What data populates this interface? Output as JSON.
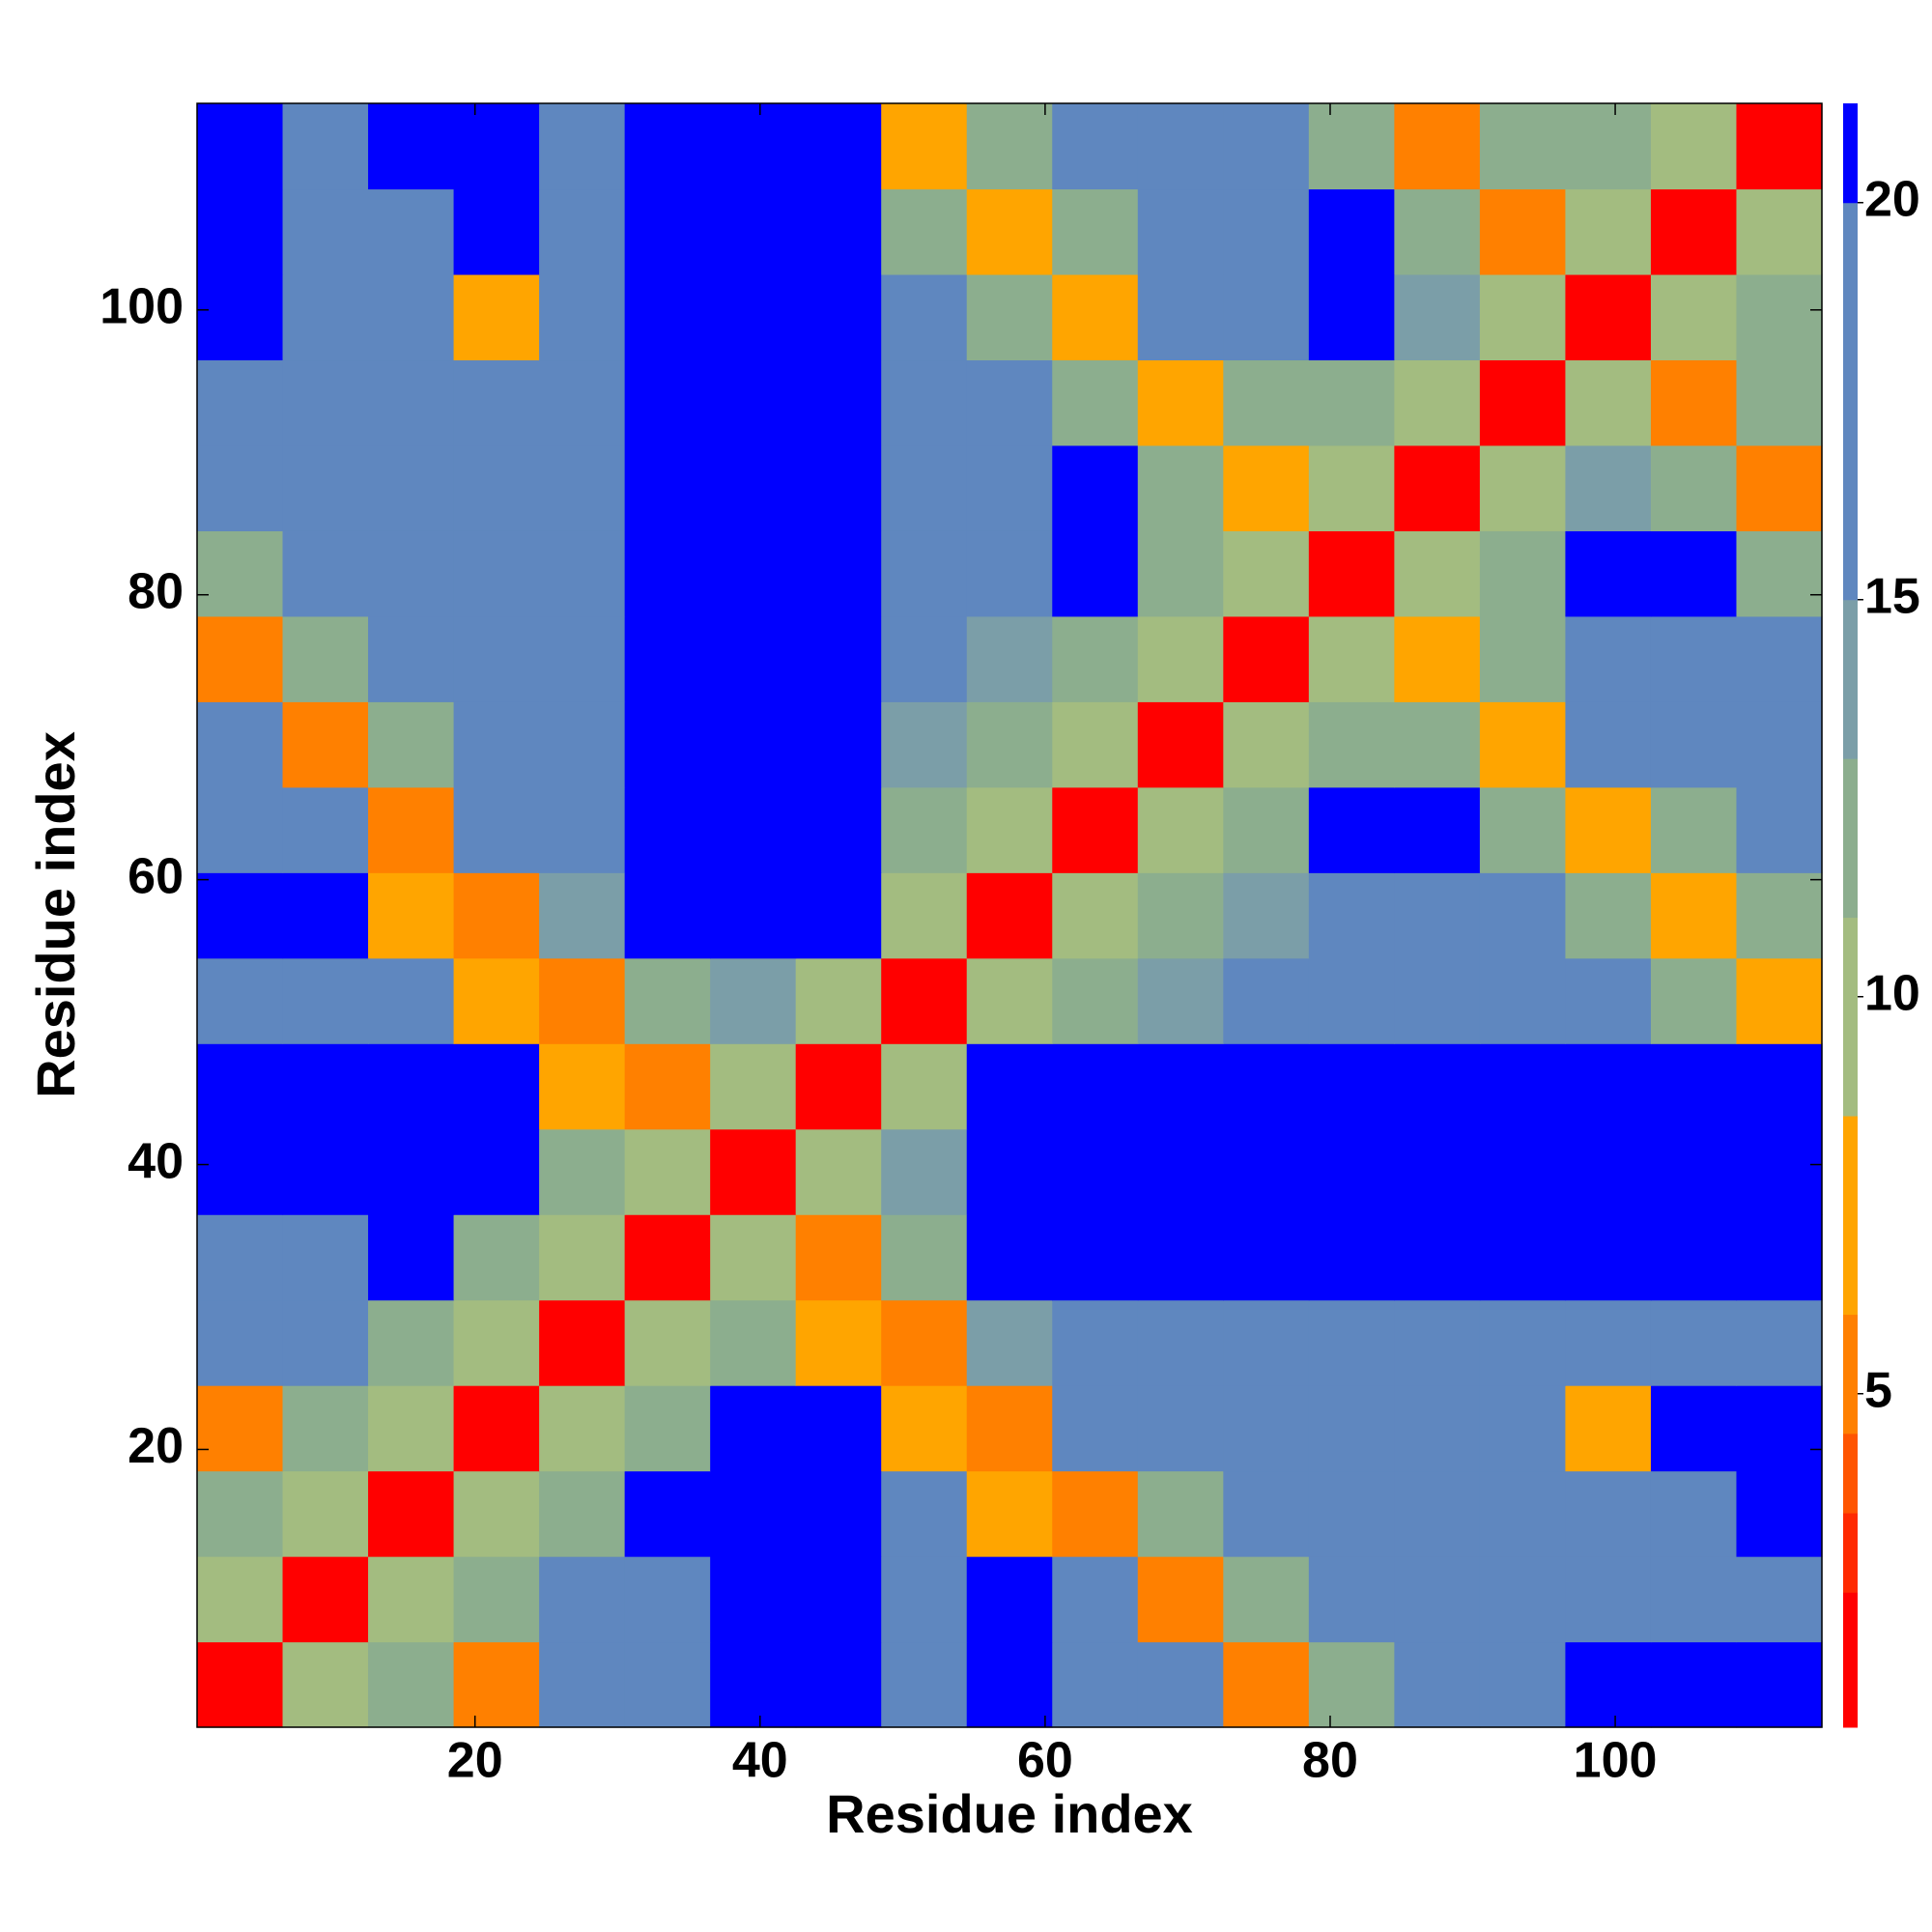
{
  "chart_data": {
    "type": "heatmap",
    "xlabel": "Residue index",
    "ylabel": "Residue index",
    "x": [
      3.5,
      9.5,
      15.5,
      21.5,
      27.5,
      33.5,
      39.5,
      45.5,
      51.5,
      57.5,
      63.5,
      69.5,
      75.5,
      81.5,
      87.5,
      93.5,
      99.5,
      105.5,
      111.5
    ],
    "y": [
      3.5,
      9.5,
      15.5,
      21.5,
      27.5,
      33.5,
      39.5,
      45.5,
      51.5,
      57.5,
      63.5,
      69.5,
      75.5,
      81.5,
      87.5,
      93.5,
      99.5,
      105.5,
      111.5
    ],
    "z": [
      [
        2,
        10,
        12,
        6,
        20,
        20,
        25,
        25,
        20,
        25,
        20,
        18,
        6,
        13,
        17,
        20,
        25,
        25,
        25
      ],
      [
        10,
        2,
        10,
        12,
        18,
        20,
        25,
        25,
        20,
        22,
        20,
        6,
        13,
        17,
        17,
        17,
        17,
        17,
        17
      ],
      [
        12,
        10,
        2,
        10,
        12,
        22,
        25,
        25,
        18,
        8,
        6,
        13,
        17,
        17,
        17,
        17,
        17,
        17,
        22
      ],
      [
        6,
        12,
        10,
        2,
        10,
        12,
        25,
        25,
        8,
        6,
        17,
        20,
        17,
        17,
        17,
        17,
        7,
        22,
        22
      ],
      [
        20,
        18,
        12,
        10,
        2,
        10,
        12,
        8,
        6,
        15,
        20,
        20,
        17,
        17,
        17,
        17,
        17,
        17,
        17
      ],
      [
        20,
        20,
        22,
        12,
        10,
        2,
        10,
        6,
        13,
        25,
        25,
        25,
        25,
        25,
        25,
        25,
        25,
        25,
        25
      ],
      [
        25,
        25,
        25,
        25,
        12,
        10,
        2,
        10,
        15,
        25,
        25,
        25,
        25,
        25,
        25,
        25,
        25,
        25,
        25
      ],
      [
        25,
        25,
        25,
        25,
        8,
        6,
        10,
        2,
        10,
        25,
        25,
        25,
        25,
        25,
        25,
        25,
        25,
        22,
        22
      ],
      [
        20,
        20,
        18,
        8,
        6,
        13,
        15,
        10,
        2,
        10,
        12,
        15,
        17,
        17,
        17,
        17,
        17,
        12,
        7
      ],
      [
        25,
        22,
        8,
        6,
        15,
        25,
        25,
        25,
        10,
        2,
        10,
        12,
        15,
        17,
        17,
        17,
        12,
        7,
        12
      ],
      [
        20,
        20,
        6,
        17,
        20,
        25,
        25,
        25,
        12,
        10,
        2,
        10,
        12,
        25,
        25,
        12,
        7,
        12,
        17
      ],
      [
        18,
        6,
        13,
        20,
        20,
        25,
        25,
        25,
        15,
        12,
        10,
        2,
        10,
        12,
        12,
        7,
        20,
        20,
        17
      ],
      [
        6,
        13,
        17,
        17,
        17,
        25,
        25,
        25,
        17,
        15,
        12,
        10,
        2,
        10,
        7,
        12,
        20,
        20,
        17
      ],
      [
        13,
        17,
        17,
        17,
        17,
        25,
        25,
        25,
        17,
        17,
        25,
        12,
        10,
        2,
        10,
        12,
        22,
        22,
        12
      ],
      [
        17,
        17,
        17,
        17,
        17,
        25,
        25,
        25,
        17,
        17,
        25,
        12,
        7,
        10,
        2,
        10,
        15,
        12,
        6
      ],
      [
        20,
        17,
        17,
        17,
        17,
        25,
        25,
        25,
        17,
        17,
        12,
        7,
        12,
        12,
        10,
        2,
        10,
        6,
        12
      ],
      [
        25,
        17,
        17,
        7,
        17,
        25,
        25,
        25,
        17,
        12,
        7,
        20,
        20,
        22,
        15,
        10,
        2,
        10,
        12
      ],
      [
        25,
        17,
        17,
        22,
        17,
        25,
        25,
        22,
        12,
        7,
        12,
        20,
        20,
        22,
        12,
        6,
        10,
        2,
        10
      ],
      [
        25,
        17,
        22,
        22,
        17,
        25,
        25,
        22,
        7,
        12,
        17,
        17,
        17,
        12,
        6,
        12,
        12,
        10,
        2
      ]
    ],
    "xlim": [
      0.5,
      114.5
    ],
    "ylim": [
      0.5,
      114.5
    ],
    "xticks": [
      20,
      40,
      60,
      80,
      100
    ],
    "yticks": [
      20,
      40,
      60,
      80,
      100
    ],
    "colorbar": {
      "lim": [
        0.8,
        21.25
      ],
      "ticks": [
        5,
        10,
        15,
        20
      ],
      "colors": [
        {
          "upto": 2.5,
          "color": "#ff0000"
        },
        {
          "upto": 3.5,
          "color": "#ff2a00"
        },
        {
          "upto": 4.5,
          "color": "#ff5500"
        },
        {
          "upto": 6,
          "color": "#ff8000"
        },
        {
          "upto": 8.5,
          "color": "#ffa500"
        },
        {
          "upto": 11,
          "color": "#a3bc80"
        },
        {
          "upto": 13,
          "color": "#8cae8e"
        },
        {
          "upto": 15,
          "color": "#7b9ea8"
        },
        {
          "upto": 20,
          "color": "#5f87bf"
        },
        {
          "upto": 21.25,
          "color": "#0000ff"
        }
      ]
    }
  }
}
